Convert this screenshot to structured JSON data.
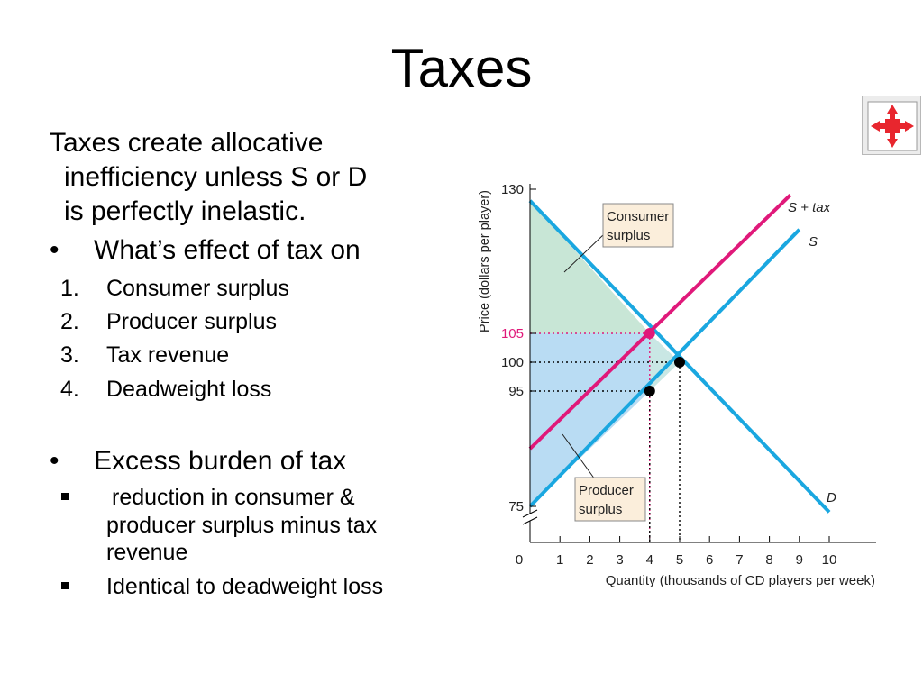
{
  "title": "Taxes",
  "intro": {
    "line1": "Taxes create allocative",
    "line2": "inefficiency unless S or D",
    "line3": "is perfectly inelastic."
  },
  "bullet_char": "•",
  "square_char": "▪",
  "question": "What’s effect of tax on",
  "numbered": [
    {
      "num": "1.",
      "label": "Consumer surplus"
    },
    {
      "num": "2.",
      "label": "Producer surplus"
    },
    {
      "num": "3.",
      "label": "Tax revenue"
    },
    {
      "num": "4.",
      "label": "Deadweight loss"
    }
  ],
  "burden": {
    "heading": "Excess burden of tax",
    "item1_line1": "reduction in consumer &",
    "item1_line2": "producer surplus minus tax",
    "item1_line3": "revenue",
    "item2": "Identical to deadweight loss"
  },
  "chart_data": {
    "type": "line",
    "ylabel": "Price (dollars per player)",
    "xlabel": "Quantity (thousands of CD players per week)",
    "x_ticks": [
      "0",
      "1",
      "2",
      "3",
      "4",
      "5",
      "6",
      "7",
      "8",
      "9",
      "10"
    ],
    "y_ticks": [
      "75",
      "95",
      "100",
      "105",
      "130"
    ],
    "xlim": [
      0,
      11.5
    ],
    "ylim_visible": [
      72,
      132
    ],
    "axis_break": true,
    "series": [
      {
        "name": "D",
        "color": "#1aa7e0",
        "points": [
          [
            0,
            128
          ],
          [
            10,
            74
          ]
        ]
      },
      {
        "name": "S",
        "color": "#1aa7e0",
        "points": [
          [
            0,
            75
          ],
          [
            9,
            123
          ]
        ]
      },
      {
        "name": "S + tax",
        "color": "#e0197a",
        "points": [
          [
            0,
            85
          ],
          [
            8.7,
            129
          ]
        ]
      }
    ],
    "points": [
      {
        "x": 4,
        "y": 105,
        "color": "#e0197a"
      },
      {
        "x": 5,
        "y": 100,
        "color": "#000000"
      },
      {
        "x": 4,
        "y": 95,
        "color": "#000000"
      }
    ],
    "guides": [
      {
        "y": 105,
        "x": 4,
        "color": "#e0197a"
      },
      {
        "y": 100,
        "x": 5,
        "color": "#000000"
      },
      {
        "y": 95,
        "x": 4,
        "color": "#000000"
      }
    ],
    "areas": [
      {
        "name": "consumer-surplus",
        "color": "#c8e6d6"
      },
      {
        "name": "producer-surplus",
        "color": "#b9dcf3"
      },
      {
        "name": "tax-revenue",
        "color": "#b9dcf3"
      }
    ],
    "annotations": [
      {
        "label_line1": "Consumer",
        "label_line2": "surplus"
      },
      {
        "label_line1": "Producer",
        "label_line2": "surplus"
      }
    ],
    "line_labels": {
      "D": "D",
      "S": "S",
      "S_tax": "S + tax"
    }
  }
}
